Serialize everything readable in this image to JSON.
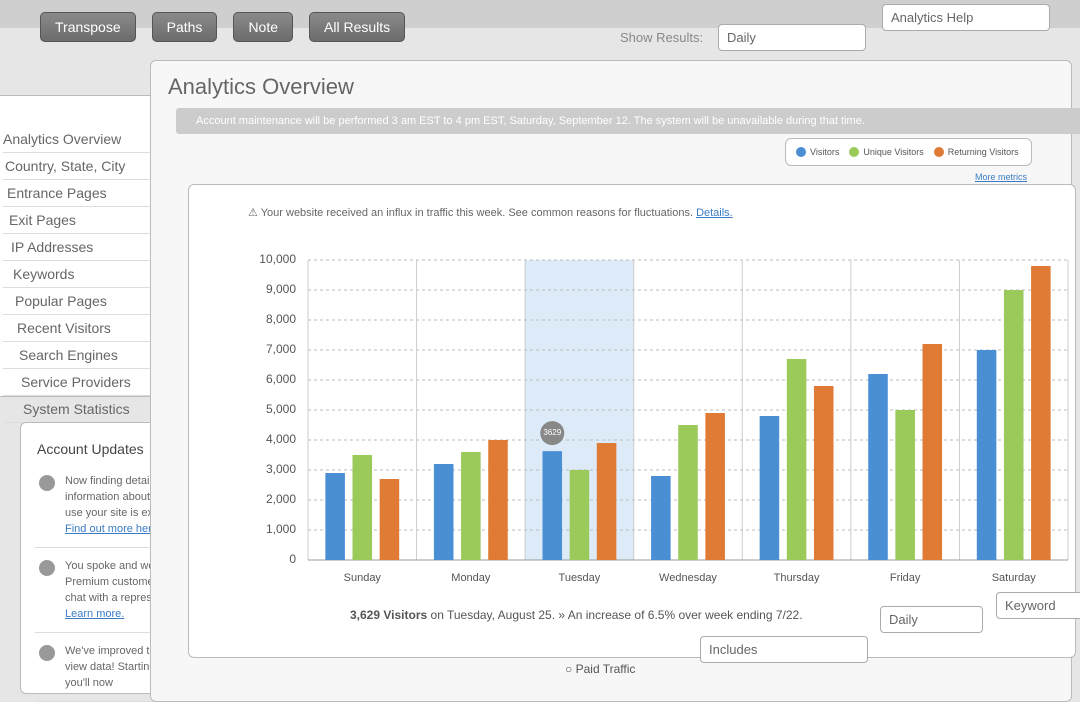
{
  "toolbar": {
    "buttons": [
      "Transpose",
      "Paths",
      "Note",
      "All Results"
    ],
    "show_results_label": "Show Results:",
    "show_results_value": "Daily",
    "search_placeholder": "Analytics Help"
  },
  "title": "Analytics Overview",
  "banner": "Account maintenance will be performed 3 am EST to 4 pm EST, Saturday, September 12. The system will be unavailable during that time.",
  "sidebar": {
    "items": [
      "Analytics Overview",
      "Country, State, City",
      "Entrance Pages",
      "Exit Pages",
      "IP Addresses",
      "Keywords",
      "Popular Pages",
      "Recent Visitors",
      "Search Engines",
      "Service Providers",
      "System Statistics"
    ]
  },
  "updates": {
    "title": "Account Updates",
    "items": [
      {
        "text": "Now finding detailed information about how visitors use your site is expanding.",
        "link": "Find out more here."
      },
      {
        "text": "You spoke and we listened. Premium customers can live chat with a representative.",
        "link": "Learn more."
      },
      {
        "text": "We've improved the way you view data! Starting this week you'll now"
      }
    ]
  },
  "alert": {
    "text": "Your website received an influx in traffic this week. See common reasons for fluctuations.",
    "link": "Details."
  },
  "more_metrics": "More metrics",
  "chart": {
    "type": "bar",
    "categories": [
      "Sunday",
      "Monday",
      "Tuesday",
      "Wednesday",
      "Thursday",
      "Friday",
      "Saturday"
    ],
    "series": [
      {
        "name": "Visitors",
        "color": "#4a8fd4",
        "values": [
          2900,
          3200,
          3629,
          2800,
          4800,
          6200,
          7000
        ]
      },
      {
        "name": "Unique Visitors",
        "color": "#9bc95a",
        "values": [
          3500,
          3600,
          3000,
          4500,
          6700,
          5000,
          9000
        ]
      },
      {
        "name": "Returning Visitors",
        "color": "#e07b35",
        "values": [
          2700,
          4000,
          3900,
          4900,
          5800,
          7200,
          9800
        ]
      }
    ],
    "ylim": [
      0,
      10000
    ],
    "yticks": [
      0,
      {
        "value": 1000,
        "label": "1,000"
      },
      {
        "value": 2000,
        "label": "2,000"
      },
      {
        "value": 3000,
        "label": "3,000"
      },
      {
        "value": 4000,
        "label": "4,000"
      },
      {
        "value": 5000,
        "label": "5,000"
      },
      {
        "value": 6000,
        "label": "6,000"
      },
      {
        "value": 7000,
        "label": "7,000"
      },
      {
        "value": 8000,
        "label": "8,000"
      },
      {
        "value": 9000,
        "label": "9,000"
      },
      {
        "value": 10000,
        "label": "10,000"
      }
    ],
    "grid": true,
    "highlight": 2
  },
  "summary": {
    "count": "3,629 Visitors",
    "text": "on Tuesday, August 25. » An increase of 6.5% over week ending 7/22."
  },
  "filters": {
    "includes": "Includes",
    "period": "Daily",
    "keyword": "Keyword",
    "paid": "Paid Traffic"
  }
}
